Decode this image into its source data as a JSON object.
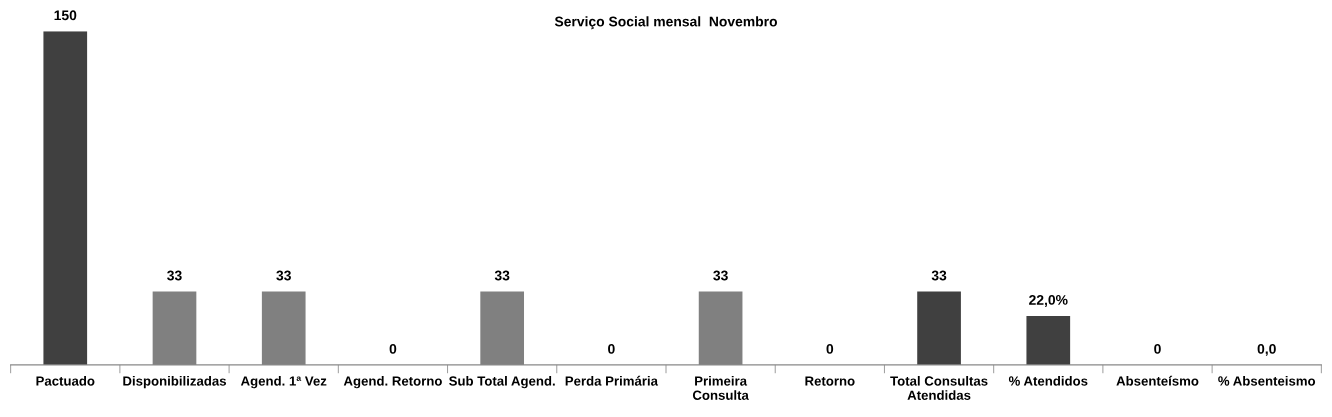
{
  "chart_data": {
    "type": "bar",
    "title": "Serviço Social mensal  Novembro",
    "categories": [
      "Pactuado",
      "Disponibilizadas",
      "Agend. 1ª Vez",
      "Agend. Retorno",
      "Sub Total Agend.",
      "Perda Primária",
      "Primeira\nConsulta",
      "Retorno",
      "Total Consultas\nAtendidas",
      "% Atendidos",
      "Absenteísmo",
      "% Absenteismo"
    ],
    "values": [
      150,
      33,
      33,
      0,
      33,
      0,
      33,
      0,
      33,
      22,
      0,
      0
    ],
    "value_labels": [
      "150",
      "33",
      "33",
      "0",
      "33",
      "0",
      "33",
      "0",
      "33",
      "22,0%",
      "0",
      "0,0"
    ],
    "colors": [
      "#404040",
      "#808080",
      "#808080",
      "#808080",
      "#808080",
      "#808080",
      "#808080",
      "#808080",
      "#404040",
      "#404040",
      "#808080",
      "#808080"
    ],
    "grid": false,
    "tick_labels": "x"
  }
}
